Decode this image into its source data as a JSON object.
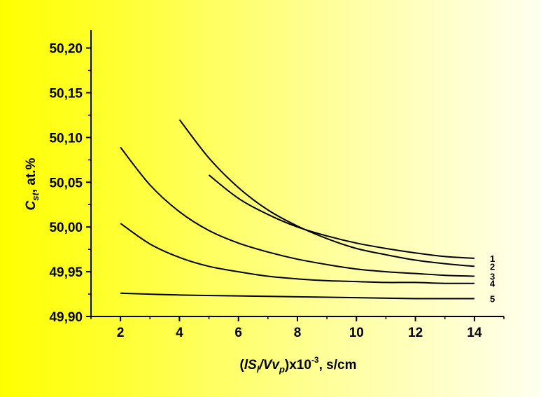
{
  "chart_data": {
    "type": "line",
    "title": "",
    "xlabel": {
      "pre": "(",
      "italic1": "lS",
      "sub1": "l",
      "italic2": "/Vv",
      "sub2": "p",
      "post": ")x10",
      "sup": "-3",
      "tail": ", s/cm"
    },
    "ylabel": {
      "italic": "C",
      "sub": "st",
      "tail": ", at.%"
    },
    "xlim": [
      1,
      15
    ],
    "ylim": [
      49.9,
      50.22
    ],
    "xticks": [
      2,
      4,
      6,
      8,
      10,
      12,
      14
    ],
    "xtick_labels": [
      "2",
      "4",
      "6",
      "8",
      "10",
      "12",
      "14"
    ],
    "yticks": [
      49.9,
      49.95,
      50.0,
      50.05,
      50.1,
      50.15,
      50.2
    ],
    "ytick_labels": [
      "49,90",
      "49,95",
      "50,00",
      "50,05",
      "50,10",
      "50,15",
      "50,20"
    ],
    "series": [
      {
        "name": "1",
        "x": [
          5,
          6,
          7,
          8,
          9,
          10,
          11,
          12,
          13,
          14
        ],
        "y": [
          50.058,
          50.032,
          50.014,
          50.0,
          49.99,
          49.982,
          49.976,
          49.971,
          49.967,
          49.965
        ]
      },
      {
        "name": "2",
        "x": [
          4,
          5,
          6,
          7,
          8,
          9,
          10,
          11,
          12,
          13,
          14
        ],
        "y": [
          50.12,
          50.077,
          50.044,
          50.019,
          50.001,
          49.987,
          49.976,
          49.969,
          49.963,
          49.959,
          49.956
        ]
      },
      {
        "name": "3",
        "x": [
          2,
          3,
          4,
          5,
          6,
          7,
          8,
          9,
          10,
          11,
          12,
          13,
          14
        ],
        "y": [
          50.089,
          50.047,
          50.017,
          49.996,
          49.982,
          49.972,
          49.964,
          49.958,
          49.953,
          49.95,
          49.948,
          49.946,
          49.945
        ]
      },
      {
        "name": "4",
        "x": [
          2,
          3,
          4,
          5,
          6,
          7,
          8,
          9,
          10,
          11,
          12,
          13,
          14
        ],
        "y": [
          50.004,
          49.981,
          49.966,
          49.956,
          49.95,
          49.945,
          49.942,
          49.94,
          49.939,
          49.938,
          49.938,
          49.937,
          49.937
        ]
      },
      {
        "name": "5",
        "x": [
          2,
          4,
          6,
          8,
          10,
          12,
          14
        ],
        "y": [
          49.926,
          49.924,
          49.923,
          49.922,
          49.921,
          49.92,
          49.92
        ]
      }
    ]
  }
}
